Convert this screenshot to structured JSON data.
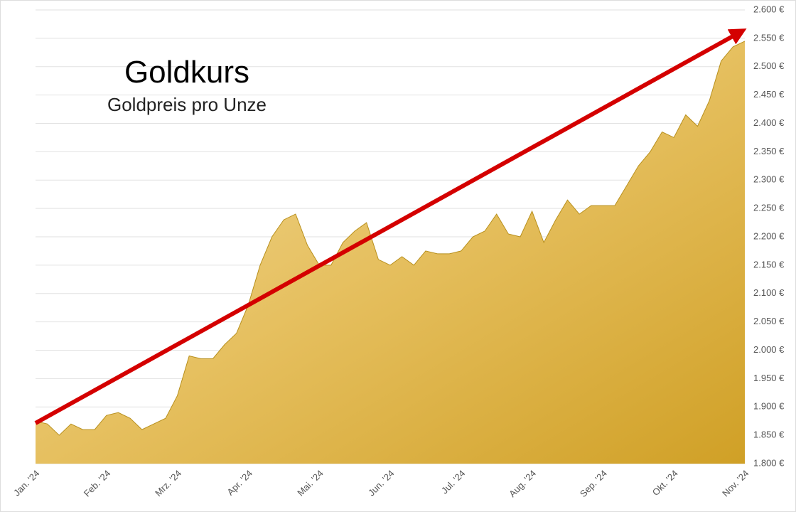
{
  "chart_data": {
    "type": "area",
    "title": "Goldkurs",
    "subtitle": "Goldpreis pro Unze",
    "color": "#d4a52c",
    "categories": [
      "Jan. '24",
      null,
      null,
      null,
      null,
      null,
      "Feb. '24",
      null,
      null,
      null,
      null,
      null,
      "Mrz. '24",
      null,
      null,
      null,
      null,
      null,
      "Apr. '24",
      null,
      null,
      null,
      null,
      null,
      "Mai. '24",
      null,
      null,
      null,
      null,
      null,
      "Jun. '24",
      null,
      null,
      null,
      null,
      null,
      "Jul. '24",
      null,
      null,
      null,
      null,
      null,
      "Aug. '24",
      null,
      null,
      null,
      null,
      null,
      "Sep. '24",
      null,
      null,
      null,
      null,
      null,
      "Okt. '24",
      null,
      null,
      null,
      null,
      null,
      "Nov. '24"
    ],
    "values": [
      1875,
      1870,
      1850,
      1870,
      1860,
      1860,
      1885,
      1890,
      1880,
      1860,
      1870,
      1880,
      1920,
      1990,
      1985,
      1985,
      2010,
      2030,
      2080,
      2150,
      2200,
      2230,
      2240,
      2185,
      2150,
      2150,
      2190,
      2210,
      2225,
      2160,
      2150,
      2165,
      2150,
      2175,
      2170,
      2170,
      2175,
      2200,
      2210,
      2240,
      2205,
      2200,
      2245,
      2190,
      2230,
      2265,
      2240,
      2255,
      2255,
      2255,
      2290,
      2325,
      2350,
      2385,
      2375,
      2415,
      2395,
      2440,
      2510,
      2535,
      2545
    ],
    "ylim": [
      1800,
      2600
    ],
    "yticks": [
      {
        "value": 1800,
        "label": "1.800 €"
      },
      {
        "value": 1850,
        "label": "1.850 €"
      },
      {
        "value": 1900,
        "label": "1.900 €"
      },
      {
        "value": 1950,
        "label": "1.950 €"
      },
      {
        "value": 2000,
        "label": "2.000 €"
      },
      {
        "value": 2050,
        "label": "2.050 €"
      },
      {
        "value": 2100,
        "label": "2.100 €"
      },
      {
        "value": 2150,
        "label": "2.150 €"
      },
      {
        "value": 2200,
        "label": "2.200 €"
      },
      {
        "value": 2250,
        "label": "2.250 €"
      },
      {
        "value": 2300,
        "label": "2.300 €"
      },
      {
        "value": 2350,
        "label": "2.350 €"
      },
      {
        "value": 2400,
        "label": "2.400 €"
      },
      {
        "value": 2450,
        "label": "2.450 €"
      },
      {
        "value": 2500,
        "label": "2.500 €"
      },
      {
        "value": 2550,
        "label": "2.550 €"
      },
      {
        "value": 2600,
        "label": "2.600 €"
      }
    ],
    "grid": true
  }
}
